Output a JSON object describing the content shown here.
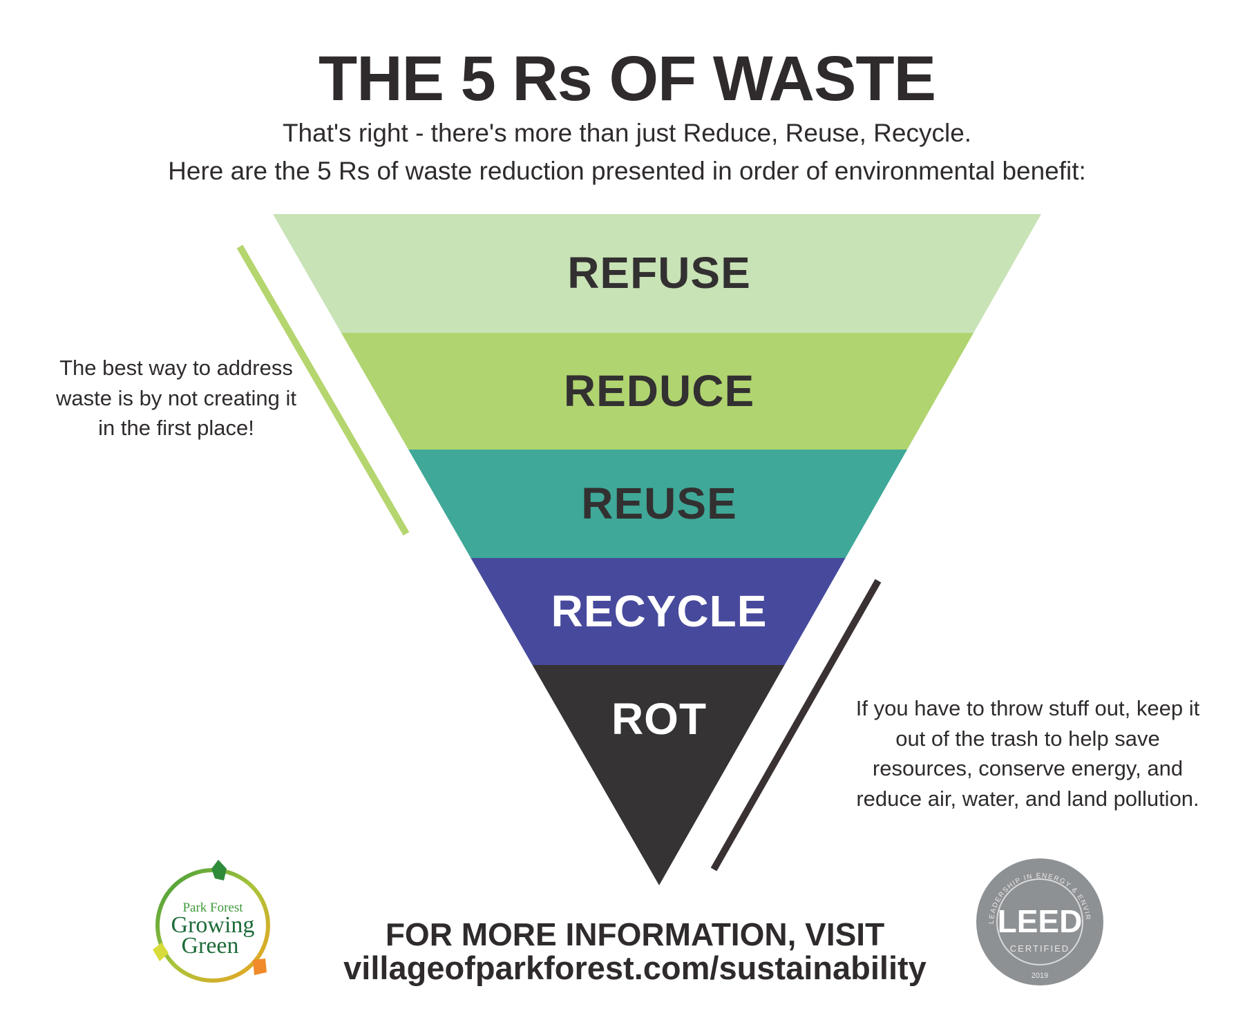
{
  "title": "THE 5 Rs OF WASTE",
  "subtitle": [
    "That's right - there's more than just Reduce, Reuse, Recycle.",
    "Here are the 5 Rs of waste reduction presented in order of environmental benefit:"
  ],
  "pyramid": [
    {
      "label": "REFUSE",
      "color": "#c8e3b6",
      "text_color": "#333031"
    },
    {
      "label": "REDUCE",
      "color": "#b0d470",
      "text_color": "#333031"
    },
    {
      "label": "REUSE",
      "color": "#3fa898",
      "text_color": "#333031"
    },
    {
      "label": "RECYCLE",
      "color": "#474a9c",
      "text_color": "#ffffff"
    },
    {
      "label": "ROT",
      "color": "#363334",
      "text_color": "#ffffff"
    }
  ],
  "left_note": "The best way to address waste is by not creating it in the first place!",
  "right_note": "If you have to throw stuff out, keep it out of the trash to help save resources, conserve energy, and reduce air, water, and land pollution.",
  "left_line_color": "#b5d56e",
  "right_line_color": "#3a3133",
  "footer": {
    "line1": "FOR MORE INFORMATION, VISIT",
    "line2": "villageofparkforest.com/sustainability"
  },
  "logos": {
    "park_forest": {
      "line1": "Park Forest",
      "line2": "Growing",
      "line3": "Green"
    },
    "leed": {
      "name": "LEED",
      "status": "CERTIFIED",
      "year": "2019",
      "ring_text": "LEADERSHIP IN ENERGY & ENVIRONMENTAL DESIGN"
    }
  }
}
